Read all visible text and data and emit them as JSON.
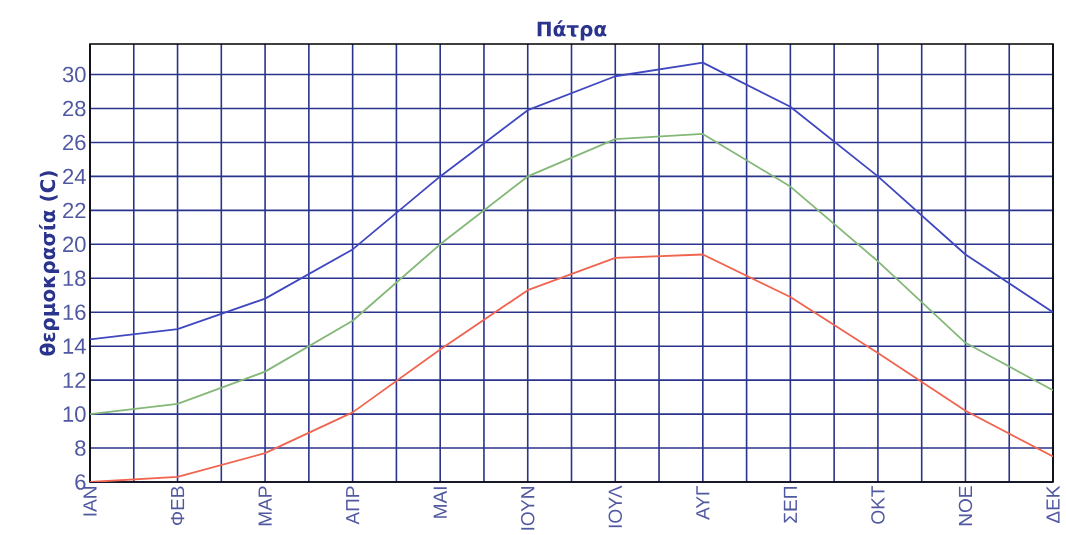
{
  "chart_data": {
    "type": "line",
    "title": "Πάτρα",
    "ylabel": "θερμοκρασία (C)",
    "categories": [
      "ΙΑΝ",
      "ΦΕΒ",
      "ΜΑΡ",
      "ΑΠΡ",
      "ΜΑΙ",
      "ΙΟΥΝ",
      "ΙΟΥΛ",
      "ΑΥΓ",
      "ΣΕΠ",
      "ΟΚΤ",
      "ΝΟΕ",
      "ΔΕΚ"
    ],
    "series": [
      {
        "color": "#4048c0",
        "values": [
          14.4,
          15.0,
          16.8,
          19.7,
          24.0,
          27.9,
          29.9,
          30.7,
          28.1,
          24.0,
          19.4,
          16.0
        ]
      },
      {
        "color": "#84b878",
        "values": [
          10.0,
          10.6,
          12.5,
          15.5,
          20.0,
          24.0,
          26.2,
          26.5,
          23.4,
          19.0,
          14.2,
          11.4
        ]
      },
      {
        "color": "#f06450",
        "values": [
          6.0,
          6.3,
          7.7,
          10.1,
          13.8,
          17.3,
          19.2,
          19.4,
          16.9,
          13.6,
          10.2,
          7.5
        ]
      }
    ],
    "ylim": [
      6,
      31.8
    ],
    "yticks": [
      6,
      8,
      10,
      12,
      14,
      16,
      18,
      20,
      22,
      24,
      26,
      28,
      30
    ],
    "grid": true,
    "marker": "none",
    "line_style": "solid"
  }
}
